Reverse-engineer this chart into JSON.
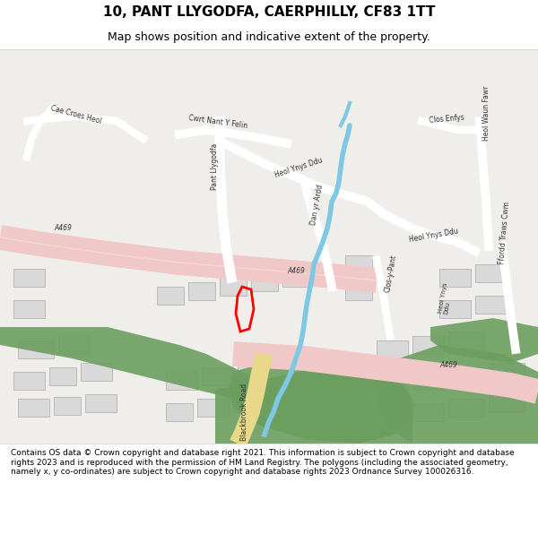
{
  "title": "10, PANT LLYGODFA, CAERPHILLY, CF83 1TT",
  "subtitle": "Map shows position and indicative extent of the property.",
  "footer": "Contains OS data © Crown copyright and database right 2021. This information is subject to Crown copyright and database rights 2023 and is reproduced with the permission of HM Land Registry. The polygons (including the associated geometry, namely x, y co-ordinates) are subject to Crown copyright and database rights 2023 Ordnance Survey 100026316.",
  "bg_color": "#f5f4f0",
  "map_bg": "#f0eeea",
  "road_major_color": "#f0c8c8",
  "road_minor_color": "#ffffff",
  "green_color": "#6b9e5e",
  "water_color": "#7ec8e3",
  "building_color": "#d9d9d9",
  "building_edge": "#aaaaaa",
  "property_color": "#ff0000",
  "road_label_color": "#333333",
  "figsize": [
    6.0,
    6.25
  ],
  "dpi": 100
}
